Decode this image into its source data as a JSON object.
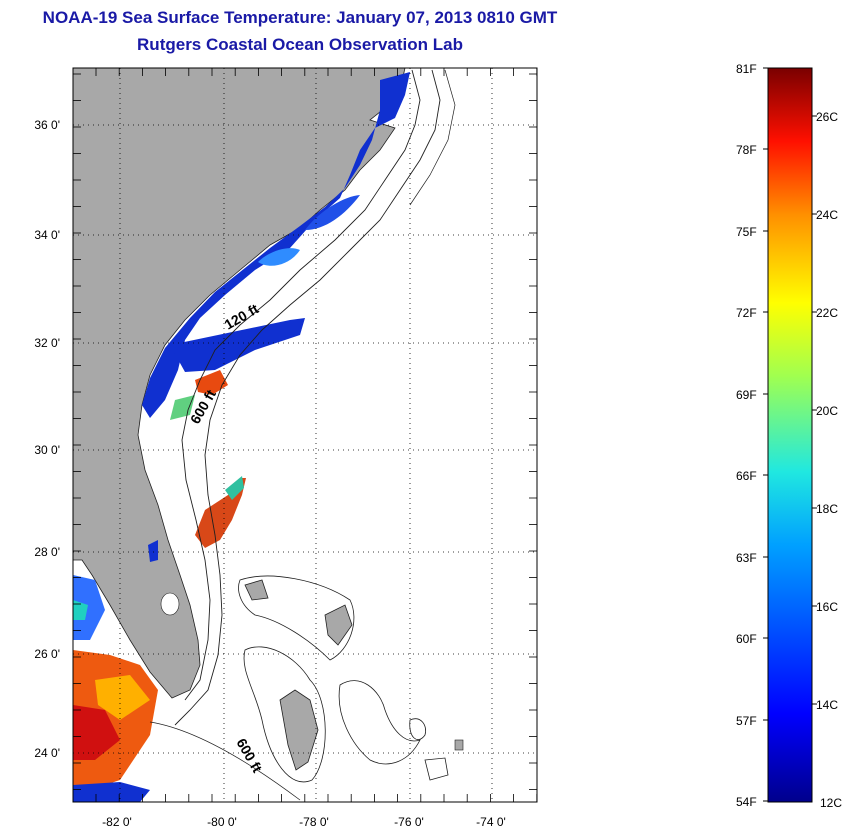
{
  "title": "NOAA-19 Sea Surface Temperature:  January 07, 2013 0810 GMT",
  "subtitle": "Rutgers Coastal Ocean Observation Lab",
  "map": {
    "lon_ticks": [
      "-82 0'",
      "-80 0'",
      "-78 0'",
      "-76 0'",
      "-74 0'"
    ],
    "lat_ticks": [
      "36 0'",
      "34 0'",
      "32 0'",
      "30 0'",
      "28 0'",
      "26 0'",
      "24 0'"
    ],
    "contour_labels": [
      "120 ft",
      "600 ft",
      "600 ft"
    ],
    "colors": {
      "land": "#a8a8a8",
      "ocean": "#ffffff",
      "cold": "#1030d0",
      "warm": "#e84a10"
    }
  },
  "colorbar": {
    "f_labels": [
      "81F",
      "78F",
      "75F",
      "72F",
      "69F",
      "66F",
      "63F",
      "60F",
      "57F",
      "54F"
    ],
    "c_labels": [
      "26C",
      "24C",
      "22C",
      "20C",
      "18C",
      "16C",
      "14C",
      "12C"
    ],
    "range_f": [
      54,
      81
    ]
  }
}
